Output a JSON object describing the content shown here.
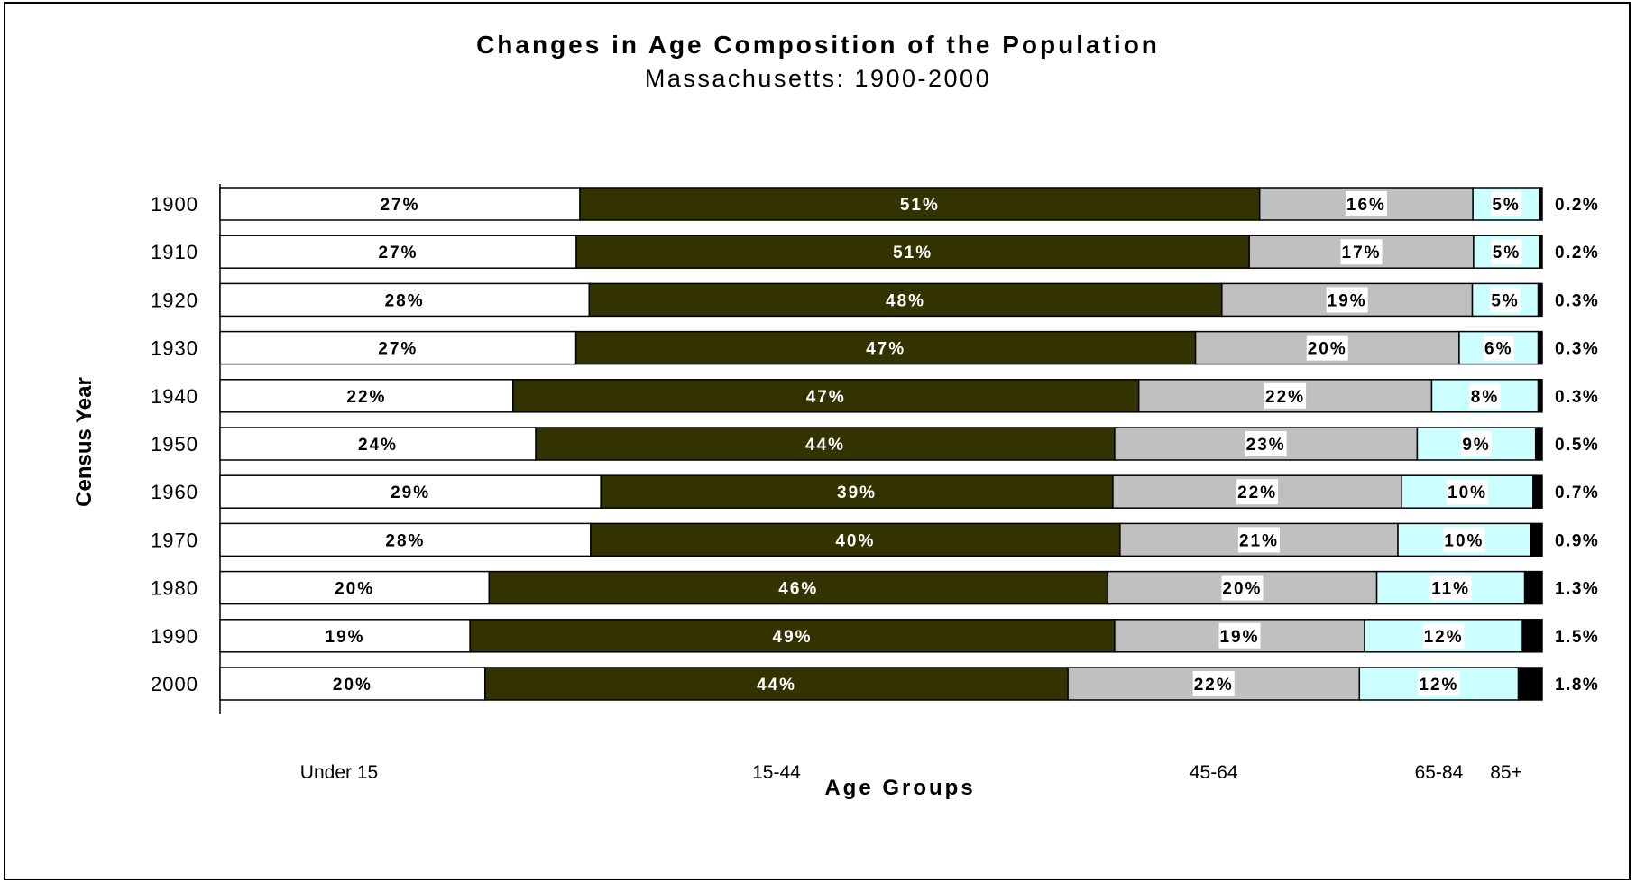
{
  "colors": {
    "Under 15": "#ffffff",
    "15-44": "#333300",
    "45-64": "#c0c0c0",
    "65-84": "#ccffff",
    "85+": "#000000"
  },
  "chart_data": {
    "type": "bar",
    "orientation": "horizontal",
    "stacked": true,
    "normalized": true,
    "title": "Changes in Age Composition of the Population",
    "subtitle": "Massachusetts: 1900-2000",
    "xlabel": "Age Groups",
    "ylabel": "Census Year",
    "xlim": [
      0,
      100
    ],
    "grid": false,
    "legend_position": "bottom",
    "categories": [
      "1900",
      "1910",
      "1920",
      "1930",
      "1940",
      "1950",
      "1960",
      "1970",
      "1980",
      "1990",
      "2000"
    ],
    "series": [
      {
        "name": "Under 15",
        "values": [
          27,
          27,
          28,
          27,
          22,
          24,
          29,
          28,
          20,
          19,
          20
        ],
        "labels": [
          "27%",
          "27%",
          "28%",
          "27%",
          "22%",
          "24%",
          "29%",
          "28%",
          "20%",
          "19%",
          "20%"
        ]
      },
      {
        "name": "15-44",
        "values": [
          51,
          51,
          48,
          47,
          47,
          44,
          39,
          40,
          46,
          49,
          44
        ],
        "labels": [
          "51%",
          "51%",
          "48%",
          "47%",
          "47%",
          "44%",
          "39%",
          "40%",
          "46%",
          "49%",
          "44%"
        ]
      },
      {
        "name": "45-64",
        "values": [
          16,
          17,
          19,
          20,
          22,
          23,
          22,
          21,
          20,
          19,
          22
        ],
        "labels": [
          "16%",
          "17%",
          "19%",
          "20%",
          "22%",
          "23%",
          "22%",
          "21%",
          "20%",
          "19%",
          "22%"
        ]
      },
      {
        "name": "65-84",
        "values": [
          5,
          5,
          5,
          6,
          8,
          9,
          10,
          10,
          11,
          12,
          12
        ],
        "labels": [
          "5%",
          "5%",
          "5%",
          "6%",
          "8%",
          "9%",
          "10%",
          "10%",
          "11%",
          "12%",
          "12%"
        ]
      },
      {
        "name": "85+",
        "values": [
          0.2,
          0.2,
          0.3,
          0.3,
          0.3,
          0.5,
          0.7,
          0.9,
          1.3,
          1.5,
          1.8
        ],
        "labels": [
          "0.2%",
          "0.2%",
          "0.3%",
          "0.3%",
          "0.3%",
          "0.5%",
          "0.7%",
          "0.9%",
          "1.3%",
          "1.5%",
          "1.8%"
        ]
      }
    ]
  }
}
